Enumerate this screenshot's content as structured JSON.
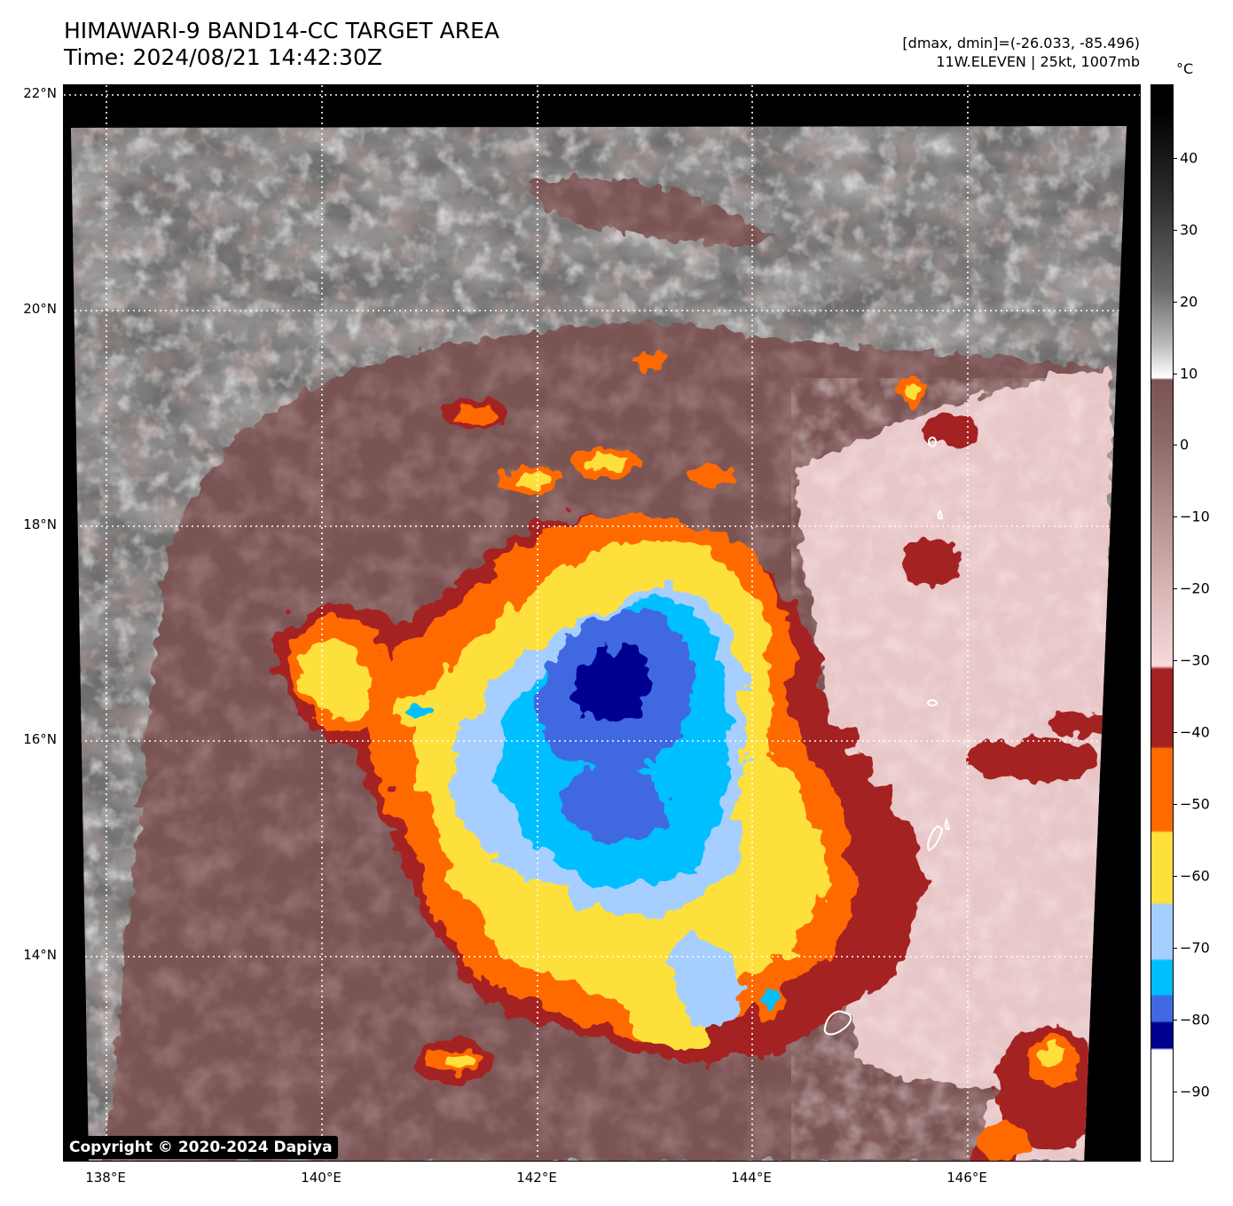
{
  "header": {
    "title_line1": "HIMAWARI-9 BAND14-CC TARGET AREA",
    "title_line2": "Time: 2024/08/21 14:42:30Z",
    "info_line1": "[dmax, dmin]=(-26.033, -85.496)",
    "info_line2": "11W.ELEVEN | 25kt, 1007mb"
  },
  "map": {
    "lat_labels": [
      "22°N",
      "20°N",
      "18°N",
      "16°N",
      "14°N"
    ],
    "lon_labels": [
      "138°E",
      "140°E",
      "142°E",
      "144°E",
      "146°E"
    ],
    "lat_range": [
      12.25,
      22.3
    ],
    "lon_range": [
      137.7,
      147.6
    ],
    "grid": true
  },
  "colorbar": {
    "unit": "°C",
    "ticks": [
      "40",
      "30",
      "20",
      "10",
      "0",
      "−10",
      "−20",
      "−30",
      "−40",
      "−50",
      "−60",
      "−70",
      "−80",
      "−90"
    ],
    "range": [
      -100,
      50
    ],
    "colors": {
      "white": "#ffffff",
      "navy": "#000090",
      "royal_blue": "#4169e1",
      "deep_sky": "#00bfff",
      "light_blue": "#a6cfff",
      "gold": "#fde03a",
      "orange": "#ff6a00",
      "dark_red": "#a52222",
      "pink": "#f6d9da",
      "brown": "#7a5352"
    }
  },
  "copyright": "Copyright © 2020-2024 Dapiya"
}
